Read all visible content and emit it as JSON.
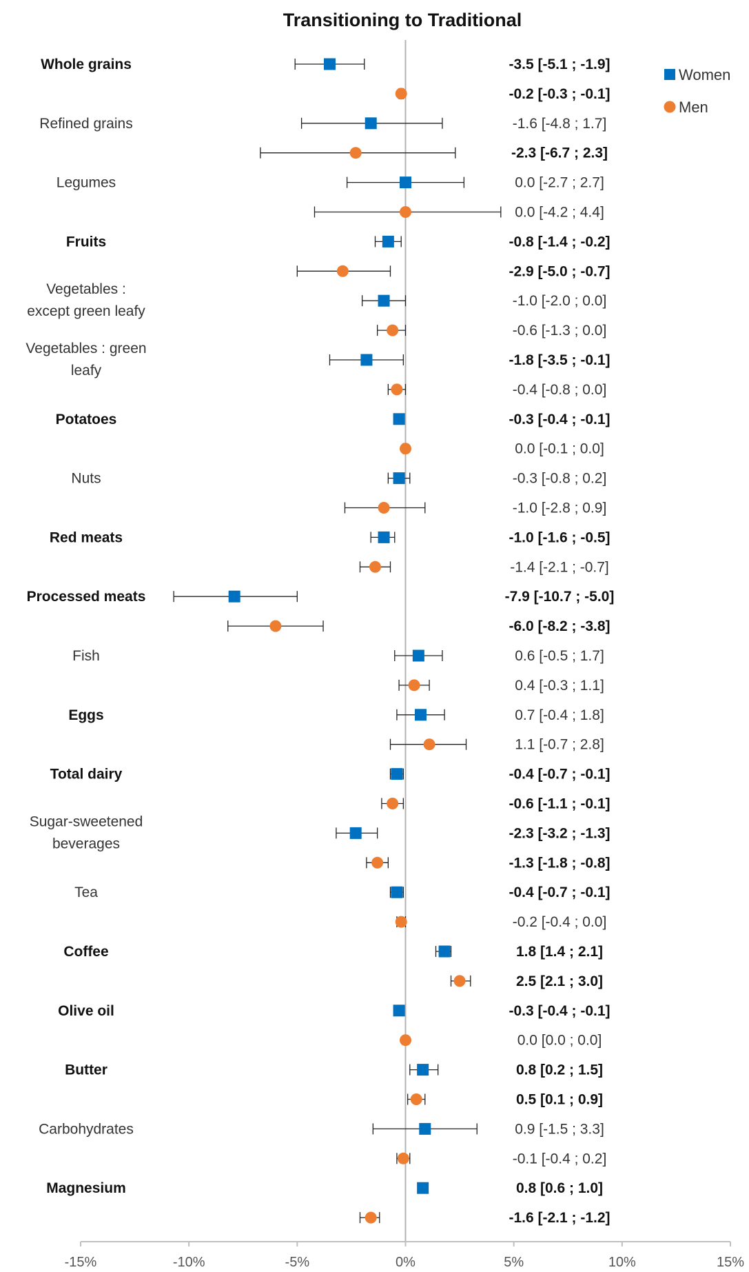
{
  "chart_data": {
    "type": "scatter",
    "title": "Transitioning to Traditional",
    "xlabel": "",
    "ylabel": "",
    "xlim": [
      -15,
      15
    ],
    "x_ticks": [
      "-15%",
      "-10%",
      "-5%",
      "0%",
      "5%",
      "10%",
      "15%"
    ],
    "x_tick_values": [
      -15,
      -10,
      -5,
      0,
      5,
      10,
      15
    ],
    "reference_line_x": 0,
    "legend_position": "top-right",
    "series": [
      {
        "name": "Women",
        "marker": "square",
        "color": "#0070C0"
      },
      {
        "name": "Men",
        "marker": "circle",
        "color": "#ED7D31"
      }
    ],
    "rows": [
      {
        "label": [
          "Whole grains"
        ],
        "bold": true,
        "women": {
          "est": -3.5,
          "lo": -5.1,
          "hi": -1.9,
          "text": "-3.5 [-5.1 ; -1.9]",
          "bold": true
        },
        "men": {
          "est": -0.2,
          "lo": -0.3,
          "hi": -0.1,
          "text": "-0.2 [-0.3 ; -0.1]",
          "bold": true
        }
      },
      {
        "label": [
          "Refined grains"
        ],
        "bold": false,
        "women": {
          "est": -1.6,
          "lo": -4.8,
          "hi": 1.7,
          "text": "-1.6 [-4.8 ; 1.7]",
          "bold": false
        },
        "men": {
          "est": -2.3,
          "lo": -6.7,
          "hi": 2.3,
          "text": "-2.3 [-6.7 ; 2.3]",
          "bold": true
        }
      },
      {
        "label": [
          "Legumes"
        ],
        "bold": false,
        "women": {
          "est": 0.0,
          "lo": -2.7,
          "hi": 2.7,
          "text": "0.0 [-2.7 ; 2.7]",
          "bold": false
        },
        "men": {
          "est": 0.0,
          "lo": -4.2,
          "hi": 4.4,
          "text": "0.0 [-4.2 ; 4.4]",
          "bold": false
        }
      },
      {
        "label": [
          "Fruits"
        ],
        "bold": true,
        "women": {
          "est": -0.8,
          "lo": -1.4,
          "hi": -0.2,
          "text": "-0.8 [-1.4 ; -0.2]",
          "bold": true
        },
        "men": {
          "est": -2.9,
          "lo": -5.0,
          "hi": -0.7,
          "text": "-2.9 [-5.0 ; -0.7]",
          "bold": true
        }
      },
      {
        "label": [
          "Vegetables :",
          "except green leafy"
        ],
        "bold": false,
        "women": {
          "est": -1.0,
          "lo": -2.0,
          "hi": 0.0,
          "text": "-1.0 [-2.0 ; 0.0]",
          "bold": false
        },
        "men": {
          "est": -0.6,
          "lo": -1.3,
          "hi": 0.0,
          "text": "-0.6 [-1.3 ; 0.0]",
          "bold": false
        }
      },
      {
        "label": [
          "Vegetables : green",
          "leafy"
        ],
        "bold": false,
        "women": {
          "est": -1.8,
          "lo": -3.5,
          "hi": -0.1,
          "text": "-1.8 [-3.5 ; -0.1]",
          "bold": true
        },
        "men": {
          "est": -0.4,
          "lo": -0.8,
          "hi": 0.0,
          "text": "-0.4 [-0.8 ; 0.0]",
          "bold": false
        }
      },
      {
        "label": [
          "Potatoes"
        ],
        "bold": true,
        "women": {
          "est": -0.3,
          "lo": -0.4,
          "hi": -0.1,
          "text": "-0.3 [-0.4 ; -0.1]",
          "bold": true
        },
        "men": {
          "est": 0.0,
          "lo": -0.1,
          "hi": 0.0,
          "text": "0.0 [-0.1 ; 0.0]",
          "bold": false
        }
      },
      {
        "label": [
          "Nuts"
        ],
        "bold": false,
        "women": {
          "est": -0.3,
          "lo": -0.8,
          "hi": 0.2,
          "text": "-0.3 [-0.8 ; 0.2]",
          "bold": false
        },
        "men": {
          "est": -1.0,
          "lo": -2.8,
          "hi": 0.9,
          "text": "-1.0 [-2.8 ; 0.9]",
          "bold": false
        }
      },
      {
        "label": [
          "Red meats"
        ],
        "bold": true,
        "women": {
          "est": -1.0,
          "lo": -1.6,
          "hi": -0.5,
          "text": "-1.0 [-1.6 ; -0.5]",
          "bold": true
        },
        "men": {
          "est": -1.4,
          "lo": -2.1,
          "hi": -0.7,
          "text": "-1.4 [-2.1 ; -0.7]",
          "bold": false
        }
      },
      {
        "label": [
          "Processed meats"
        ],
        "bold": true,
        "women": {
          "est": -7.9,
          "lo": -10.7,
          "hi": -5.0,
          "text": "-7.9 [-10.7 ; -5.0]",
          "bold": true
        },
        "men": {
          "est": -6.0,
          "lo": -8.2,
          "hi": -3.8,
          "text": "-6.0 [-8.2 ; -3.8]",
          "bold": true
        }
      },
      {
        "label": [
          "Fish"
        ],
        "bold": false,
        "women": {
          "est": 0.6,
          "lo": -0.5,
          "hi": 1.7,
          "text": "0.6 [-0.5 ; 1.7]",
          "bold": false
        },
        "men": {
          "est": 0.4,
          "lo": -0.3,
          "hi": 1.1,
          "text": "0.4 [-0.3 ; 1.1]",
          "bold": false
        }
      },
      {
        "label": [
          "Eggs"
        ],
        "bold": true,
        "women": {
          "est": 0.7,
          "lo": -0.4,
          "hi": 1.8,
          "text": "0.7 [-0.4 ; 1.8]",
          "bold": false
        },
        "men": {
          "est": 1.1,
          "lo": -0.7,
          "hi": 2.8,
          "text": "1.1 [-0.7 ; 2.8]",
          "bold": false
        }
      },
      {
        "label": [
          "Total dairy"
        ],
        "bold": true,
        "women": {
          "est": -0.4,
          "lo": -0.7,
          "hi": -0.1,
          "text": "-0.4 [-0.7 ; -0.1]",
          "bold": true
        },
        "men": {
          "est": -0.6,
          "lo": -1.1,
          "hi": -0.1,
          "text": "-0.6 [-1.1 ; -0.1]",
          "bold": true
        }
      },
      {
        "label": [
          "Sugar-sweetened",
          "beverages"
        ],
        "bold": false,
        "women": {
          "est": -2.3,
          "lo": -3.2,
          "hi": -1.3,
          "text": "-2.3 [-3.2 ; -1.3]",
          "bold": true
        },
        "men": {
          "est": -1.3,
          "lo": -1.8,
          "hi": -0.8,
          "text": "-1.3 [-1.8 ; -0.8]",
          "bold": true
        }
      },
      {
        "label": [
          "Tea"
        ],
        "bold": false,
        "women": {
          "est": -0.4,
          "lo": -0.7,
          "hi": -0.1,
          "text": "-0.4 [-0.7 ; -0.1]",
          "bold": true
        },
        "men": {
          "est": -0.2,
          "lo": -0.4,
          "hi": 0.0,
          "text": "-0.2 [-0.4 ; 0.0]",
          "bold": false
        }
      },
      {
        "label": [
          "Coffee"
        ],
        "bold": true,
        "women": {
          "est": 1.8,
          "lo": 1.4,
          "hi": 2.1,
          "text": "1.8 [1.4 ; 2.1]",
          "bold": true
        },
        "men": {
          "est": 2.5,
          "lo": 2.1,
          "hi": 3.0,
          "text": "2.5 [2.1 ; 3.0]",
          "bold": true
        }
      },
      {
        "label": [
          "Olive oil"
        ],
        "bold": true,
        "women": {
          "est": -0.3,
          "lo": -0.4,
          "hi": -0.1,
          "text": "-0.3 [-0.4 ; -0.1]",
          "bold": true
        },
        "men": {
          "est": 0.0,
          "lo": 0.0,
          "hi": 0.0,
          "text": "0.0 [0.0 ; 0.0]",
          "bold": false
        }
      },
      {
        "label": [
          "Butter"
        ],
        "bold": true,
        "women": {
          "est": 0.8,
          "lo": 0.2,
          "hi": 1.5,
          "text": "0.8 [0.2 ; 1.5]",
          "bold": true
        },
        "men": {
          "est": 0.5,
          "lo": 0.1,
          "hi": 0.9,
          "text": "0.5 [0.1 ; 0.9]",
          "bold": true
        }
      },
      {
        "label": [
          "Carbohydrates"
        ],
        "bold": false,
        "women": {
          "est": 0.9,
          "lo": -1.5,
          "hi": 3.3,
          "text": "0.9 [-1.5 ; 3.3]",
          "bold": false
        },
        "men": {
          "est": -0.1,
          "lo": -0.4,
          "hi": 0.2,
          "text": "-0.1 [-0.4 ; 0.2]",
          "bold": false
        }
      },
      {
        "label": [
          "Magnesium"
        ],
        "bold": true,
        "women": {
          "est": 0.8,
          "lo": 0.6,
          "hi": 1.0,
          "text": "0.8 [0.6 ; 1.0]",
          "bold": true
        },
        "men": {
          "est": -1.6,
          "lo": -2.1,
          "hi": -1.2,
          "text": "-1.6 [-2.1 ; -1.2]",
          "bold": true
        }
      }
    ]
  }
}
